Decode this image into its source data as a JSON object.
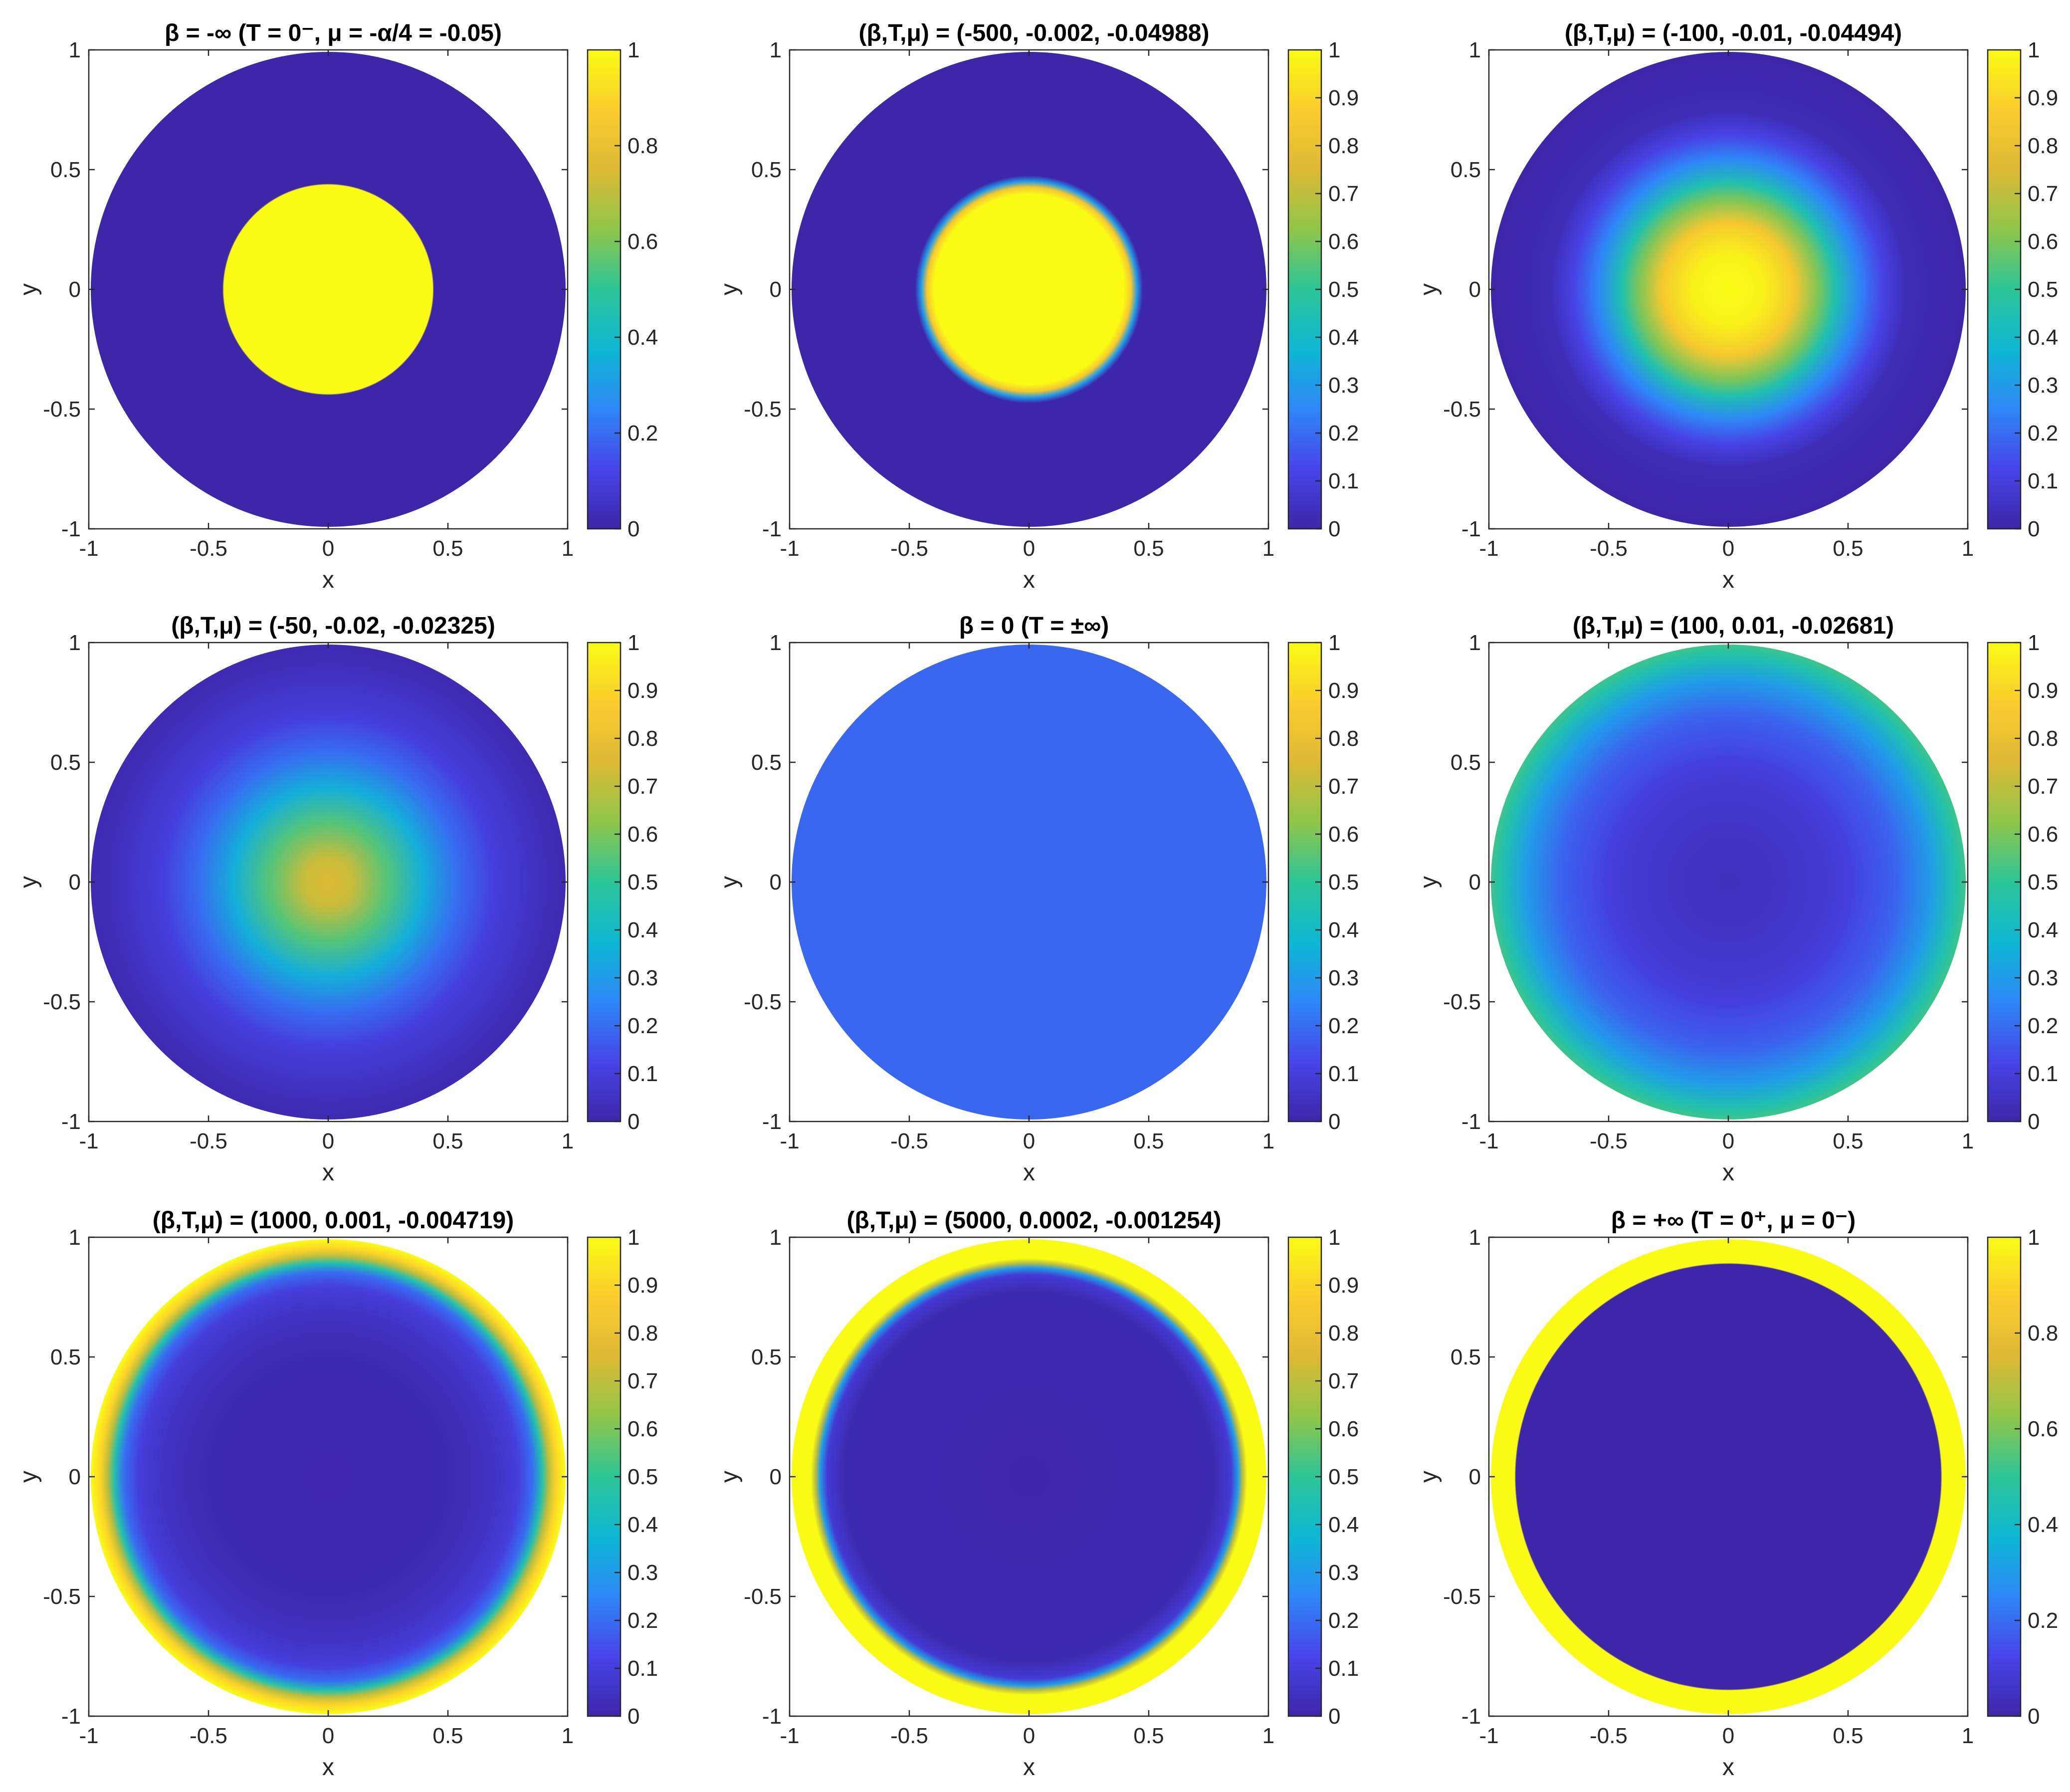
{
  "figure": {
    "rows": 3,
    "cols": 3
  },
  "colormap": {
    "name": "parula",
    "stops": [
      "#3e26a8",
      "#4744e9",
      "#2e87f7",
      "#0db8d3",
      "#2cc597",
      "#8fc64a",
      "#ddb935",
      "#fbcc2d",
      "#f9fb15"
    ]
  },
  "chart_data": [
    {
      "type": "heatmap",
      "shape": "disk",
      "title": "β = -∞ (T = 0⁻, μ = -α/4 = -0.05)",
      "xlabel": "x",
      "ylabel": "y",
      "xlim": [
        -1,
        1
      ],
      "ylim": [
        -1,
        1
      ],
      "xticks": [
        "-1",
        "-0.5",
        "0",
        "0.5",
        "1"
      ],
      "yticks": [
        "1",
        "0.5",
        "0",
        "-0.5",
        "-1"
      ],
      "colorbar": {
        "lim": [
          0,
          1
        ],
        "ticks": [
          "1",
          "0.8",
          "0.6",
          "0.4",
          "0.2",
          "0"
        ]
      },
      "radial_profile": {
        "r": [
          0,
          0.44,
          0.445,
          1
        ],
        "values": [
          1,
          1,
          0,
          0
        ]
      }
    },
    {
      "type": "heatmap",
      "shape": "disk",
      "title": "(β,T,μ) = (-500, -0.002, -0.04988)",
      "xlabel": "x",
      "ylabel": "y",
      "xlim": [
        -1,
        1
      ],
      "ylim": [
        -1,
        1
      ],
      "xticks": [
        "-1",
        "-0.5",
        "0",
        "0.5",
        "1"
      ],
      "yticks": [
        "1",
        "0.5",
        "0",
        "-0.5",
        "-1"
      ],
      "colorbar": {
        "lim": [
          0,
          1
        ],
        "ticks": [
          "1",
          "0.9",
          "0.8",
          "0.7",
          "0.6",
          "0.5",
          "0.4",
          "0.3",
          "0.2",
          "0.1",
          "0"
        ]
      },
      "radial_profile": {
        "r": [
          0,
          0.4,
          0.43,
          0.455,
          0.48,
          1
        ],
        "values": [
          1,
          1,
          0.85,
          0.3,
          0,
          0
        ]
      }
    },
    {
      "type": "heatmap",
      "shape": "disk",
      "title": "(β,T,μ) = (-100, -0.01, -0.04494)",
      "xlabel": "x",
      "ylabel": "y",
      "xlim": [
        -1,
        1
      ],
      "ylim": [
        -1,
        1
      ],
      "xticks": [
        "-1",
        "-0.5",
        "0",
        "0.5",
        "1"
      ],
      "yticks": [
        "1",
        "0.5",
        "0",
        "-0.5",
        "-1"
      ],
      "colorbar": {
        "lim": [
          0,
          1
        ],
        "ticks": [
          "1",
          "0.9",
          "0.8",
          "0.7",
          "0.6",
          "0.5",
          "0.4",
          "0.3",
          "0.2",
          "0.1",
          "0"
        ]
      },
      "radial_profile": {
        "r": [
          0,
          0.15,
          0.28,
          0.38,
          0.45,
          0.55,
          0.65,
          0.75,
          1
        ],
        "values": [
          1,
          0.97,
          0.85,
          0.6,
          0.45,
          0.25,
          0.12,
          0.03,
          0.0
        ]
      }
    },
    {
      "type": "heatmap",
      "shape": "disk",
      "title": "(β,T,μ) = (-50, -0.02, -0.02325)",
      "xlabel": "x",
      "ylabel": "y",
      "xlim": [
        -1,
        1
      ],
      "ylim": [
        -1,
        1
      ],
      "xticks": [
        "-1",
        "-0.5",
        "0",
        "0.5",
        "1"
      ],
      "yticks": [
        "1",
        "0.5",
        "0",
        "-0.5",
        "-1"
      ],
      "colorbar": {
        "lim": [
          0,
          1
        ],
        "ticks": [
          "1",
          "0.9",
          "0.8",
          "0.7",
          "0.6",
          "0.5",
          "0.4",
          "0.3",
          "0.2",
          "0.1",
          "0"
        ]
      },
      "radial_profile": {
        "r": [
          0,
          0.1,
          0.25,
          0.4,
          0.55,
          0.7,
          0.85,
          1
        ],
        "values": [
          0.75,
          0.72,
          0.55,
          0.35,
          0.2,
          0.1,
          0.05,
          0.02
        ]
      }
    },
    {
      "type": "heatmap",
      "shape": "disk",
      "title": "β = 0 (T = ±∞)",
      "xlabel": "x",
      "ylabel": "y",
      "xlim": [
        -1,
        1
      ],
      "ylim": [
        -1,
        1
      ],
      "xticks": [
        "-1",
        "-0.5",
        "0",
        "0.5",
        "1"
      ],
      "yticks": [
        "1",
        "0.5",
        "0",
        "-0.5",
        "-1"
      ],
      "colorbar": {
        "lim": [
          0,
          1
        ],
        "ticks": [
          "1",
          "0.9",
          "0.8",
          "0.7",
          "0.6",
          "0.5",
          "0.4",
          "0.3",
          "0.2",
          "0.1",
          "0"
        ]
      },
      "radial_profile": {
        "r": [
          0,
          1
        ],
        "values": [
          0.19,
          0.19
        ]
      }
    },
    {
      "type": "heatmap",
      "shape": "disk",
      "title": "(β,T,μ) = (100, 0.01, -0.02681)",
      "xlabel": "x",
      "ylabel": "y",
      "xlim": [
        -1,
        1
      ],
      "ylim": [
        -1,
        1
      ],
      "xticks": [
        "-1",
        "-0.5",
        "0",
        "0.5",
        "1"
      ],
      "yticks": [
        "1",
        "0.5",
        "0",
        "-0.5",
        "-1"
      ],
      "colorbar": {
        "lim": [
          0,
          1
        ],
        "ticks": [
          "1",
          "0.9",
          "0.8",
          "0.7",
          "0.6",
          "0.5",
          "0.4",
          "0.3",
          "0.2",
          "0.1",
          "0"
        ]
      },
      "radial_profile": {
        "r": [
          0,
          0.3,
          0.5,
          0.7,
          0.85,
          0.95,
          1
        ],
        "values": [
          0.04,
          0.06,
          0.1,
          0.18,
          0.3,
          0.45,
          0.52
        ]
      }
    },
    {
      "type": "heatmap",
      "shape": "disk",
      "title": "(β,T,μ) = (1000, 0.001, -0.004719)",
      "xlabel": "x",
      "ylabel": "y",
      "xlim": [
        -1,
        1
      ],
      "ylim": [
        -1,
        1
      ],
      "xticks": [
        "-1",
        "-0.5",
        "0",
        "0.5",
        "1"
      ],
      "yticks": [
        "1",
        "0.5",
        "0",
        "-0.5",
        "-1"
      ],
      "colorbar": {
        "lim": [
          0,
          1
        ],
        "ticks": [
          "1",
          "0.9",
          "0.8",
          "0.7",
          "0.6",
          "0.5",
          "0.4",
          "0.3",
          "0.2",
          "0.1",
          "0"
        ]
      },
      "radial_profile": {
        "r": [
          0,
          0.5,
          0.7,
          0.8,
          0.86,
          0.9,
          0.93,
          0.96,
          1
        ],
        "values": [
          0.01,
          0.02,
          0.05,
          0.1,
          0.2,
          0.45,
          0.7,
          0.9,
          1
        ]
      }
    },
    {
      "type": "heatmap",
      "shape": "disk",
      "title": "(β,T,μ) = (5000, 0.0002, -0.001254)",
      "xlabel": "x",
      "ylabel": "y",
      "xlim": [
        -1,
        1
      ],
      "ylim": [
        -1,
        1
      ],
      "xticks": [
        "-1",
        "-0.5",
        "0",
        "0.5",
        "1"
      ],
      "yticks": [
        "1",
        "0.5",
        "0",
        "-0.5",
        "-1"
      ],
      "colorbar": {
        "lim": [
          0,
          1
        ],
        "ticks": [
          "1",
          "0.9",
          "0.8",
          "0.7",
          "0.6",
          "0.5",
          "0.4",
          "0.3",
          "0.2",
          "0.1",
          "0"
        ]
      },
      "radial_profile": {
        "r": [
          0,
          0.78,
          0.85,
          0.88,
          0.9,
          0.92,
          1
        ],
        "values": [
          0.0,
          0.02,
          0.08,
          0.3,
          0.7,
          1,
          1
        ]
      }
    },
    {
      "type": "heatmap",
      "shape": "disk",
      "title": "β = +∞ (T = 0⁺, μ = 0⁻)",
      "xlabel": "x",
      "ylabel": "y",
      "xlim": [
        -1,
        1
      ],
      "ylim": [
        -1,
        1
      ],
      "xticks": [
        "-1",
        "-0.5",
        "0",
        "0.5",
        "1"
      ],
      "yticks": [
        "1",
        "0.5",
        "0",
        "-0.5",
        "-1"
      ],
      "colorbar": {
        "lim": [
          0,
          1
        ],
        "ticks": [
          "1",
          "0.8",
          "0.6",
          "0.4",
          "0.2",
          "0"
        ]
      },
      "radial_profile": {
        "r": [
          0,
          0.895,
          0.9,
          1
        ],
        "values": [
          0,
          0,
          1,
          1
        ]
      }
    }
  ]
}
